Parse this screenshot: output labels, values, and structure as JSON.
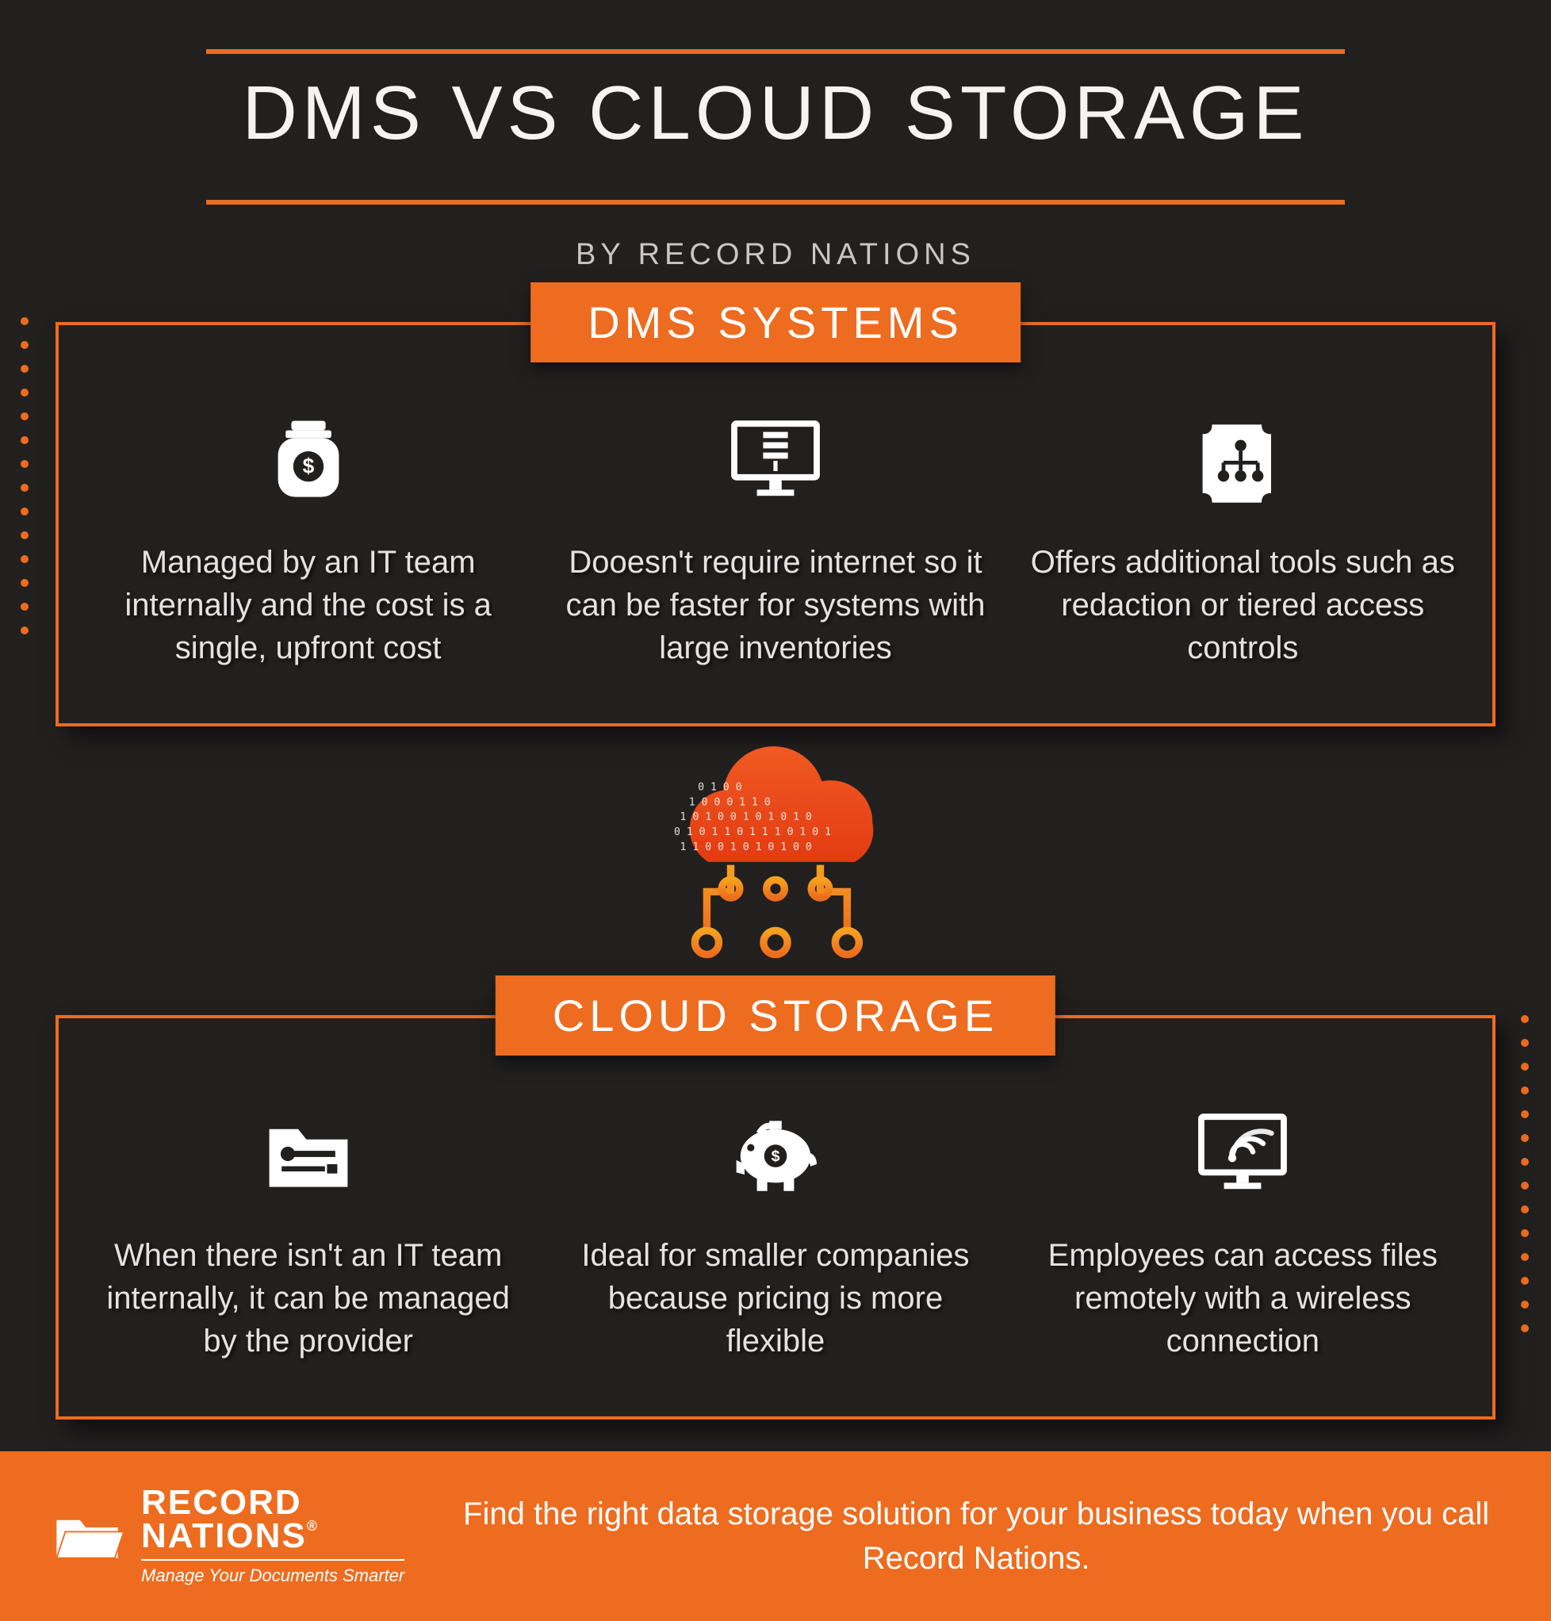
{
  "title": "DMS VS CLOUD STORAGE",
  "byline": "BY RECORD NATIONS",
  "colors": {
    "accent": "#ed6c1f",
    "bg": "#221f1f",
    "text": "#ffffff"
  },
  "dms": {
    "header": "DMS SYSTEMS",
    "items": [
      {
        "icon": "money-jar-icon",
        "text": "Managed by an IT team internally and the cost is a single, upfront cost"
      },
      {
        "icon": "monitor-list-icon",
        "text": "Dooesn't require internet so it can be faster for systems with large inventories"
      },
      {
        "icon": "hierarchy-doc-icon",
        "text": "Offers additional tools such as redaction or tiered access controls"
      }
    ]
  },
  "cloud": {
    "header": "CLOUD STORAGE",
    "items": [
      {
        "icon": "tools-folder-icon",
        "text": "When there isn't an IT team internally, it can be managed by the provider"
      },
      {
        "icon": "piggy-bank-icon",
        "text": "Ideal for smaller companies because pricing is more flexible"
      },
      {
        "icon": "monitor-wifi-icon",
        "text": "Employees can access files remotely with a wireless connection"
      }
    ]
  },
  "footer": {
    "brand_top": "RECORD",
    "brand_bottom": "NATIONS",
    "tagline": "Manage Your Documents Smarter",
    "cta": "Find the right data storage solution for your business today when you call Record Nations."
  },
  "num_dots": 14
}
